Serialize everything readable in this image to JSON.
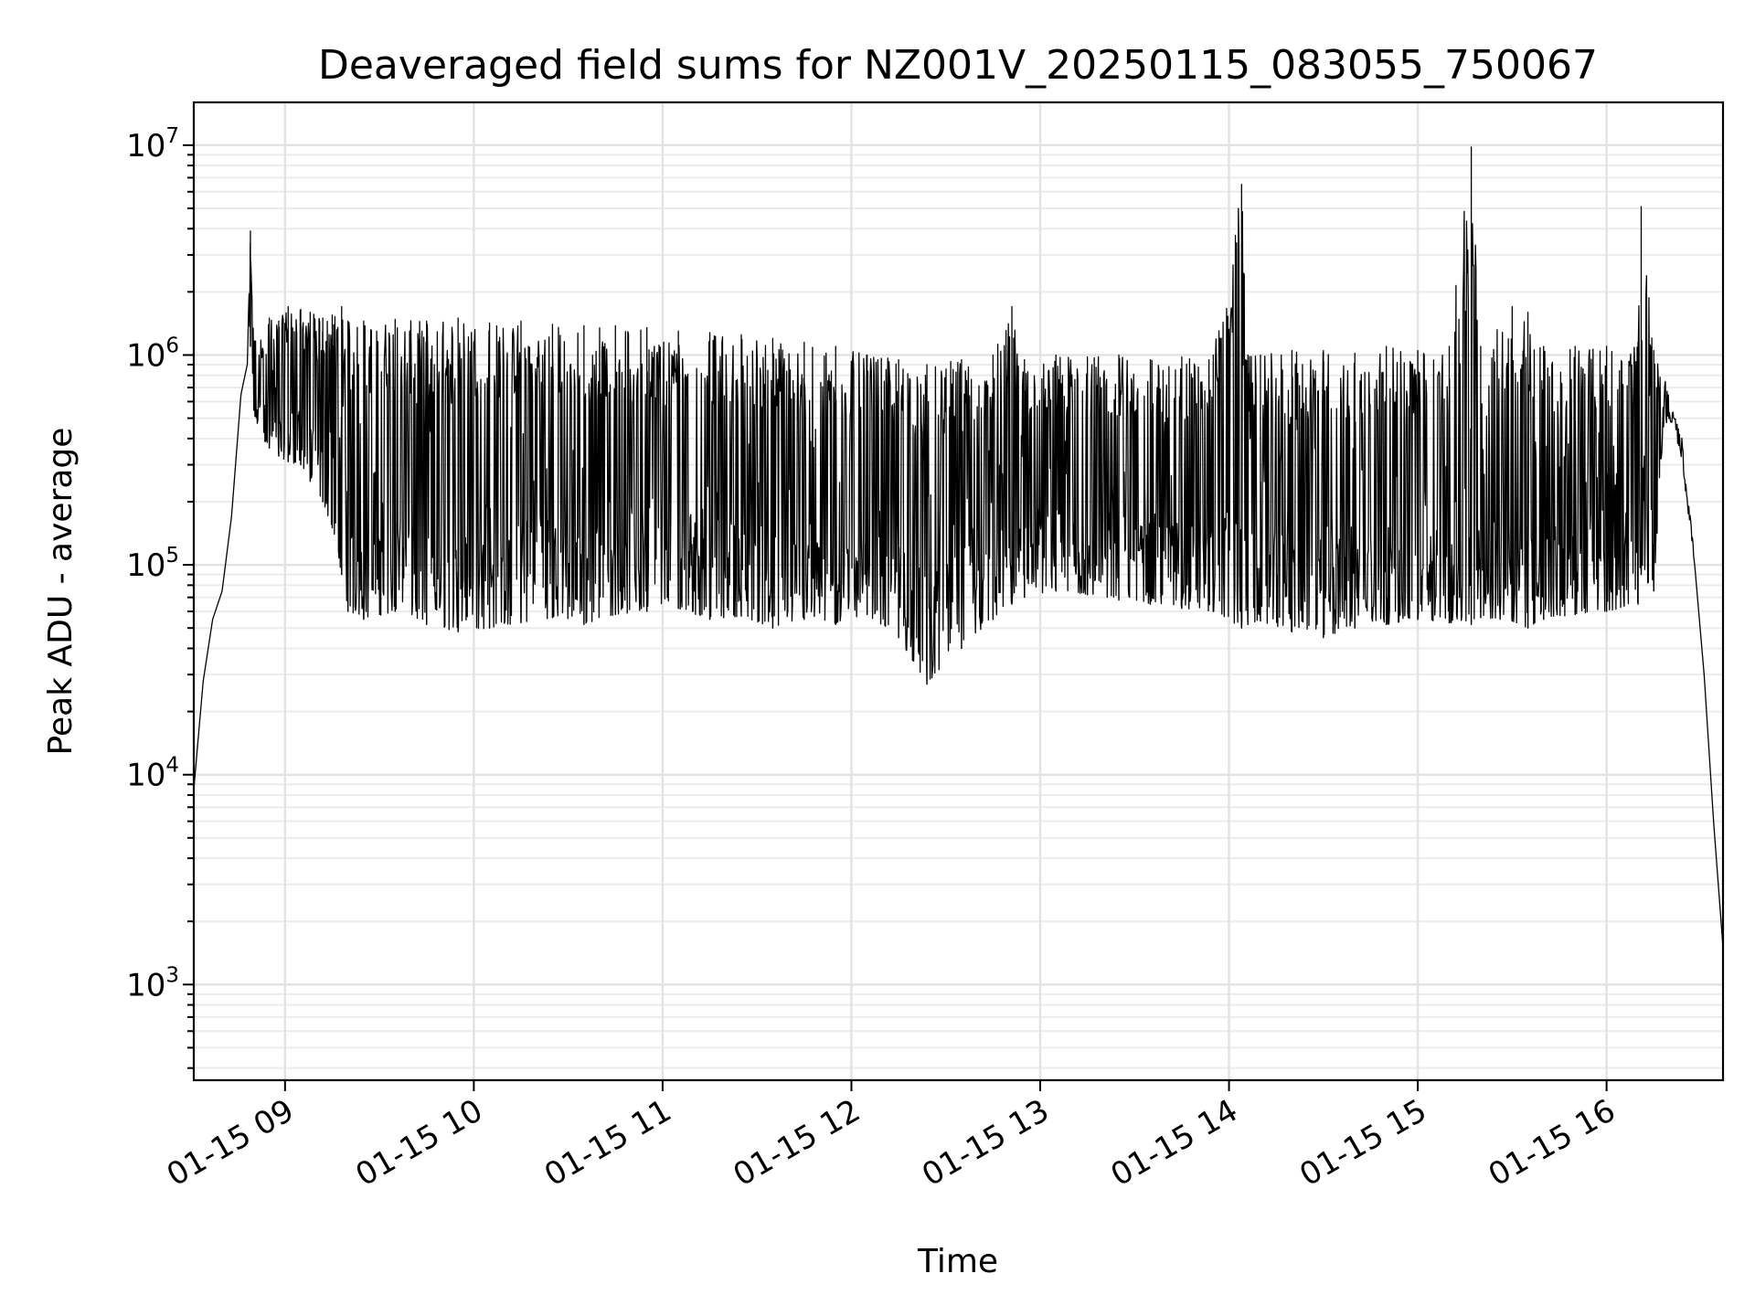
{
  "chart_data": {
    "type": "line",
    "title": "Deaveraged field sums for NZ001V_20250115_083055_750067",
    "xlabel": "Time",
    "ylabel": "Peak ADU - average",
    "yscale": "log",
    "grid": true,
    "x_tick_labels": [
      "01-15 09",
      "01-15 10",
      "01-15 11",
      "01-15 12",
      "01-15 13",
      "01-15 14",
      "01-15 15",
      "01-15 16"
    ],
    "x_tick_values": [
      "2025-01-15T09:00",
      "2025-01-15T10:00",
      "2025-01-15T11:00",
      "2025-01-15T12:00",
      "2025-01-15T13:00",
      "2025-01-15T14:00",
      "2025-01-15T15:00",
      "2025-01-15T16:00"
    ],
    "xlim": [
      "2025-01-15T08:31",
      "2025-01-15T16:37"
    ],
    "y_tick_labels": [
      {
        "base": "10",
        "exp": "3"
      },
      {
        "base": "10",
        "exp": "4"
      },
      {
        "base": "10",
        "exp": "5"
      },
      {
        "base": "10",
        "exp": "6"
      },
      {
        "base": "10",
        "exp": "7"
      }
    ],
    "y_tick_values": [
      1000,
      10000,
      100000,
      1000000,
      10000000
    ],
    "ylim": [
      350,
      16000000
    ],
    "series": [
      {
        "color": "#000000",
        "x": [
          "08:31",
          "08:34",
          "08:37",
          "08:40",
          "08:43",
          "08:46",
          "08:48",
          "08:49",
          "08:50",
          "08:52",
          "08:55",
          "08:58",
          "09:01",
          "09:05",
          "09:08",
          "09:12",
          "09:15",
          "09:18",
          "09:20",
          "09:25",
          "09:35",
          "09:45",
          "09:55",
          "10:05",
          "10:15",
          "10:25",
          "10:35",
          "10:45",
          "10:55",
          "11:05",
          "11:15",
          "11:25",
          "11:35",
          "11:45",
          "11:55",
          "12:05",
          "12:15",
          "12:24",
          "12:35",
          "12:45",
          "12:51",
          "12:55",
          "13:05",
          "13:15",
          "13:25",
          "13:35",
          "13:45",
          "13:55",
          "14:04",
          "14:06",
          "14:10",
          "14:20",
          "14:30",
          "14:40",
          "14:50",
          "15:00",
          "15:10",
          "15:17",
          "15:20",
          "15:30",
          "15:35",
          "15:40",
          "15:50",
          "16:00",
          "16:10",
          "16:11",
          "16:15",
          "16:18",
          "16:20",
          "16:24",
          "16:28",
          "16:31",
          "16:34",
          "16:37"
        ],
        "lower": [
          8500,
          28000,
          55000,
          75000,
          170000,
          650000,
          900000,
          1100000,
          500000,
          420000,
          360000,
          330000,
          310000,
          300000,
          250000,
          200000,
          150000,
          90000,
          60000,
          55000,
          60000,
          52000,
          48000,
          50000,
          53000,
          56000,
          52000,
          58000,
          60000,
          62000,
          55000,
          57000,
          50000,
          55000,
          52000,
          58000,
          45000,
          27000,
          40000,
          55000,
          65000,
          70000,
          75000,
          72000,
          68000,
          65000,
          62000,
          60000,
          50000,
          52000,
          54000,
          48000,
          45000,
          50000,
          52000,
          55000,
          53000,
          52000,
          56000,
          54000,
          50000,
          55000,
          58000,
          60000,
          65000,
          90000,
          75000,
          450000,
          500000,
          300000,
          100000,
          30000,
          6000,
          1500
        ],
        "upper": [
          8500,
          28000,
          55000,
          75000,
          170000,
          650000,
          900000,
          3900000,
          1400000,
          1200000,
          1500000,
          1450000,
          1700000,
          1650000,
          1600000,
          1500000,
          1550000,
          1700000,
          1450000,
          1450000,
          1480000,
          1450000,
          1500000,
          1420000,
          1450000,
          1400000,
          1380000,
          1380000,
          1350000,
          1300000,
          1280000,
          1250000,
          1200000,
          1150000,
          1100000,
          1000000,
          950000,
          900000,
          950000,
          1000000,
          1700000,
          950000,
          1000000,
          980000,
          1000000,
          950000,
          980000,
          1000000,
          6500000,
          1000000,
          1000000,
          1050000,
          1050000,
          1020000,
          1100000,
          1050000,
          1100000,
          9800000,
          1100000,
          1700000,
          1600000,
          1100000,
          1100000,
          1100000,
          1150000,
          5100000,
          1050000,
          900000,
          600000,
          400000,
          110000,
          30000,
          6000,
          1500
        ]
      }
    ]
  }
}
